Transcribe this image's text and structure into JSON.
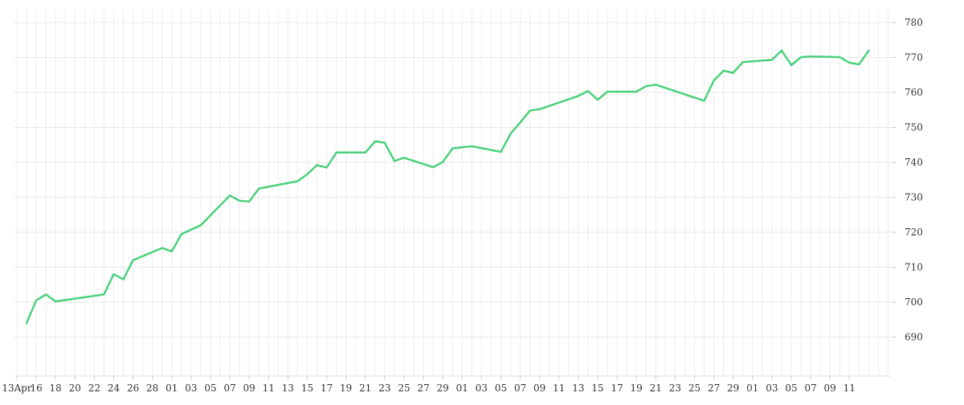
{
  "chart_data": {
    "type": "line",
    "title": "",
    "xlabel": "",
    "ylabel": "",
    "grid": true,
    "y_axis_position": "right",
    "ylim": [
      680,
      785
    ],
    "y_ticks": [
      690,
      700,
      710,
      720,
      730,
      740,
      750,
      760,
      770,
      780
    ],
    "x_tick_labels": [
      "13Apr",
      "16",
      "18",
      "20",
      "22",
      "24",
      "26",
      "28",
      "01",
      "03",
      "05",
      "07",
      "09",
      "11",
      "13",
      "15",
      "17",
      "19",
      "21",
      "23",
      "25",
      "27",
      "29",
      "01",
      "03",
      "05",
      "07",
      "09",
      "11",
      "13",
      "15",
      "17",
      "19",
      "21",
      "23",
      "25",
      "27",
      "29",
      "01",
      "03",
      "05",
      "07",
      "09",
      "11"
    ],
    "series": [
      {
        "color": "#4cd07d",
        "x": [
          "2017-04-14",
          "2017-04-15",
          "2017-04-16",
          "2017-04-17",
          "2017-04-22",
          "2017-04-23",
          "2017-04-24",
          "2017-04-25",
          "2017-04-28",
          "2017-04-29",
          "2017-04-30",
          "2017-05-02",
          "2017-05-05",
          "2017-05-06",
          "2017-05-07",
          "2017-05-08",
          "2017-05-12",
          "2017-05-13",
          "2017-05-14",
          "2017-05-15",
          "2017-05-16",
          "2017-05-19",
          "2017-05-20",
          "2017-05-21",
          "2017-05-22",
          "2017-05-23",
          "2017-05-26",
          "2017-05-27",
          "2017-05-28",
          "2017-05-30",
          "2017-06-02",
          "2017-06-03",
          "2017-06-04",
          "2017-06-05",
          "2017-06-06",
          "2017-06-10",
          "2017-06-11",
          "2017-06-12",
          "2017-06-13",
          "2017-06-16",
          "2017-06-17",
          "2017-06-18",
          "2017-06-23",
          "2017-06-24",
          "2017-06-25",
          "2017-06-26",
          "2017-06-27",
          "2017-06-30",
          "2017-07-01",
          "2017-07-02",
          "2017-07-03",
          "2017-07-04",
          "2017-07-07",
          "2017-07-08",
          "2017-07-09",
          "2017-07-10"
        ],
        "y": [
          694,
          700.5,
          702.2,
          700.2,
          702.2,
          708,
          706.5,
          712,
          715.5,
          714.5,
          719.5,
          722,
          730.5,
          729,
          728.8,
          732.5,
          734.6,
          736.6,
          739.2,
          738.5,
          742.8,
          742.8,
          746,
          745.6,
          740.4,
          741.3,
          738.6,
          740.1,
          744,
          744.6,
          743,
          748.2,
          751.4,
          754.8,
          755.2,
          759,
          760.4,
          757.9,
          760.2,
          760.2,
          761.8,
          762.2,
          757.6,
          763.4,
          766.2,
          765.6,
          768.7,
          769.3,
          772,
          767.8,
          770.1,
          770.3,
          770.1,
          768.5,
          768,
          772
        ]
      }
    ]
  }
}
